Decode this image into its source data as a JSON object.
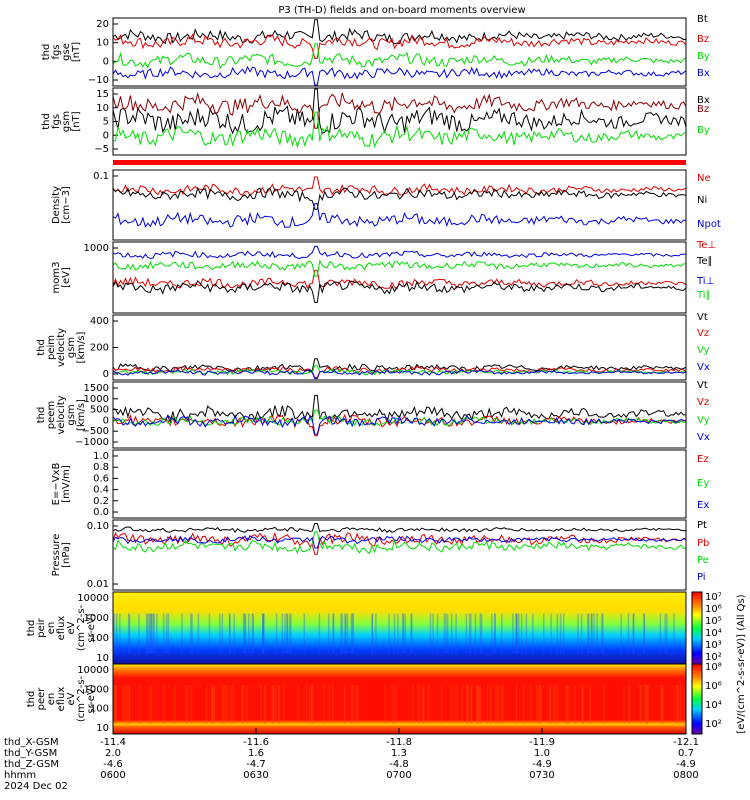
{
  "title": "P3 (TH-D) fields and on-board moments overview",
  "colors": {
    "black": "#000000",
    "red": "#e00000",
    "green": "#00dd00",
    "blue": "#0000dd",
    "darkred": "#8b0000"
  },
  "footer": {
    "labels": [
      "thd_X-GSM",
      "thd_Y-GSM",
      "thd_Z-GSM",
      "hhmm",
      "2024 Dec 02"
    ],
    "times": [
      "0600",
      "0630",
      "0700",
      "0730",
      "0800"
    ],
    "x_gsm": [
      "-11.4",
      "-11.6",
      "-11.8",
      "-11.9",
      "-12.1"
    ],
    "y_gsm": [
      "2.0",
      "1.6",
      "1.3",
      "1.0",
      "0.7"
    ],
    "z_gsm": [
      "-4.6",
      "-4.7",
      "-4.8",
      "-4.9",
      "-4.9"
    ]
  },
  "colorbar": {
    "label": "[eV/(cm^2-s-sr-eV)] (All Qs)",
    "ticks_top": [
      "10⁷",
      "10⁶",
      "10⁵",
      "10⁴",
      "10³",
      "10²"
    ],
    "ticks_bottom": [
      "10⁸",
      "10⁶",
      "10⁴",
      "10²"
    ]
  },
  "chart_data": [
    {
      "type": "line",
      "ylabel": [
        "thd",
        "fgs",
        "gse",
        "[nT]"
      ],
      "yticks": [
        "20",
        "10",
        "0",
        "−10"
      ],
      "ylim": [
        -14,
        23
      ],
      "series": [
        {
          "name": "Bt",
          "color": "black",
          "base": 13,
          "amp": 3
        },
        {
          "name": "Bz",
          "color": "red",
          "base": 10,
          "amp": 3
        },
        {
          "name": "By",
          "color": "green",
          "base": 0,
          "amp": 3
        },
        {
          "name": "Bx",
          "color": "blue",
          "base": -7,
          "amp": 2.5
        }
      ]
    },
    {
      "type": "line",
      "ylabel": [
        "thd",
        "fgs",
        "gsm",
        "[nT]"
      ],
      "yticks": [
        "15",
        "10",
        "5",
        "0",
        "−5"
      ],
      "ylim": [
        -9,
        16
      ],
      "series": [
        {
          "name": "Bx",
          "color": "black",
          "base": 4,
          "amp": 4
        },
        {
          "name": "Bz",
          "color": "darkred",
          "base": 10,
          "amp": 3
        },
        {
          "name": "By",
          "color": "green",
          "base": -2,
          "amp": 3
        }
      ]
    },
    {
      "type": "line",
      "ylabel": [
        "Density",
        "[cm−3]"
      ],
      "yticks": [
        "0.1"
      ],
      "ylim": [
        0,
        1
      ],
      "series": [
        {
          "name": "Ne",
          "color": "red",
          "base": 0.72,
          "amp": 0.06
        },
        {
          "name": "Ni",
          "color": "black",
          "base": 0.65,
          "amp": 0.07
        },
        {
          "name": "Npot",
          "color": "blue",
          "base": 0.28,
          "amp": 0.08
        }
      ]
    },
    {
      "type": "line",
      "ylabel": [
        "mom3",
        "[eV]"
      ],
      "yticks": [
        "1000"
      ],
      "ylim": [
        0,
        1
      ],
      "series": [
        {
          "name": "Te⊥",
          "color": "red",
          "base": 0.42,
          "amp": 0.06
        },
        {
          "name": "Te∥",
          "color": "black",
          "base": 0.36,
          "amp": 0.07
        },
        {
          "name": "Ti⊥",
          "color": "blue",
          "base": 0.82,
          "amp": 0.04
        },
        {
          "name": "Ti∥",
          "color": "green",
          "base": 0.67,
          "amp": 0.05
        }
      ]
    },
    {
      "type": "line",
      "ylabel": [
        "thd",
        "peim",
        "velocity",
        "gsm",
        "[km/s]"
      ],
      "yticks": [
        "400",
        "200",
        "0"
      ],
      "ylim": [
        -80,
        560
      ],
      "series": [
        {
          "name": "Vt",
          "color": "black",
          "base": 40,
          "amp": 30
        },
        {
          "name": "Vz",
          "color": "red",
          "base": 20,
          "amp": 25
        },
        {
          "name": "Vy",
          "color": "green",
          "base": 0,
          "amp": 20
        },
        {
          "name": "Vx",
          "color": "blue",
          "base": -5,
          "amp": 20
        }
      ]
    },
    {
      "type": "line",
      "ylabel": [
        "thd",
        "peem",
        "velocity",
        "gsm",
        "[km/s]"
      ],
      "yticks": [
        "1500",
        "1000",
        "500",
        "0",
        "−500",
        "−1000"
      ],
      "ylim": [
        -1100,
        1600
      ],
      "series": [
        {
          "name": "Vt",
          "color": "black",
          "base": 300,
          "amp": 250
        },
        {
          "name": "Vz",
          "color": "red",
          "base": 0,
          "amp": 200
        },
        {
          "name": "Vy",
          "color": "green",
          "base": 0,
          "amp": 150
        },
        {
          "name": "Vx",
          "color": "blue",
          "base": 0,
          "amp": 180
        }
      ]
    },
    {
      "type": "line",
      "ylabel": [
        "E=−VxB",
        "[mV/m]"
      ],
      "yticks": [
        "1.0",
        "0.8",
        "0.6",
        "0.4",
        "0.2",
        "0.0"
      ],
      "ylim": [
        -0.1,
        1.05
      ],
      "series": [
        {
          "name": "Ez",
          "color": "red",
          "base": null,
          "amp": 0
        },
        {
          "name": "Ey",
          "color": "green",
          "base": null,
          "amp": 0
        },
        {
          "name": "Ex",
          "color": "blue",
          "base": null,
          "amp": 0
        }
      ]
    },
    {
      "type": "line",
      "ylabel": [
        "Pressure",
        "[nPa]"
      ],
      "yticks": [
        "0.10",
        "0.01"
      ],
      "ylim": [
        0,
        1
      ],
      "series": [
        {
          "name": "Pt",
          "color": "black",
          "base": 0.86,
          "amp": 0.03
        },
        {
          "name": "Pb",
          "color": "red",
          "base": 0.72,
          "amp": 0.07
        },
        {
          "name": "Pe",
          "color": "green",
          "base": 0.62,
          "amp": 0.07
        },
        {
          "name": "Pi",
          "color": "blue",
          "base": 0.72,
          "amp": 0.04
        }
      ]
    },
    {
      "type": "heatmap",
      "ylabel": [
        "thd",
        "peir",
        "en",
        "eflux",
        "eV",
        "(cm^2-s-",
        "sr-eV)"
      ],
      "yticks": [
        "10000",
        "1000",
        "100",
        "10"
      ]
    },
    {
      "type": "heatmap",
      "ylabel": [
        "thd",
        "peer",
        "en",
        "eflux",
        "eV",
        "(cm^2-s-",
        "sr-eV)"
      ],
      "yticks": [
        "10000",
        "1000",
        "100",
        "10"
      ]
    }
  ]
}
